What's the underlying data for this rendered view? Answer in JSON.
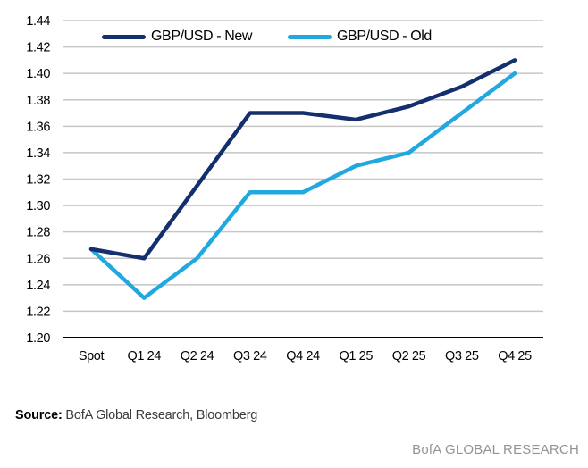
{
  "figure": {
    "background": "#ffffff"
  },
  "chart_data": {
    "type": "line",
    "categories": [
      "Spot",
      "Q1 24",
      "Q2 24",
      "Q3 24",
      "Q4 24",
      "Q1 25",
      "Q2 25",
      "Q3 25",
      "Q4 25"
    ],
    "series": [
      {
        "name": "GBP/USD - New",
        "color": "#142f6e",
        "values": [
          1.267,
          1.26,
          1.315,
          1.37,
          1.37,
          1.365,
          1.375,
          1.39,
          1.41
        ]
      },
      {
        "name": "GBP/USD - Old",
        "color": "#22a8e0",
        "values": [
          1.267,
          1.23,
          1.26,
          1.31,
          1.31,
          1.33,
          1.34,
          1.37,
          1.4
        ]
      }
    ],
    "title": "",
    "xlabel": "",
    "ylabel": "",
    "ylim": [
      1.2,
      1.44
    ],
    "y_tick_step": 0.02,
    "y_tick_labels": [
      "1.20",
      "1.22",
      "1.24",
      "1.26",
      "1.28",
      "1.30",
      "1.32",
      "1.34",
      "1.36",
      "1.38",
      "1.40",
      "1.42",
      "1.44"
    ],
    "grid": "horizontal",
    "gridline_color": "#c6c6c6",
    "axis_line_color": "#000000",
    "tick_label_color": "#000000",
    "legend_position": "top"
  },
  "footer": {
    "source_label": "Source:",
    "source_text": " BofA Global Research, Bloomberg",
    "brand": "BofA GLOBAL RESEARCH"
  }
}
